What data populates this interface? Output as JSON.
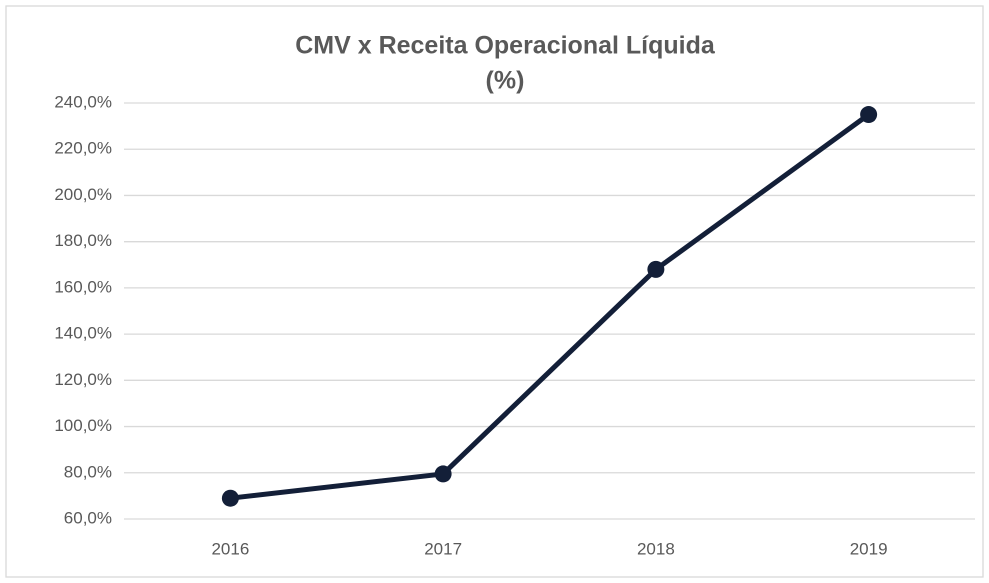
{
  "chart_data": {
    "type": "line",
    "title": "CMV x Receita Operacional  Líquida",
    "subtitle": "(%)",
    "categories": [
      "2016",
      "2017",
      "2018",
      "2019"
    ],
    "series": [
      {
        "name": "CMV x Receita Operacional Líquida",
        "color": "#131f38",
        "values": [
          69,
          79.5,
          168,
          235
        ]
      }
    ],
    "ylim": [
      60,
      240
    ],
    "yticks": [
      {
        "value": 60,
        "label": "60,0%"
      },
      {
        "value": 80,
        "label": "80,0%"
      },
      {
        "value": 100,
        "label": "100,0%"
      },
      {
        "value": 120,
        "label": "120,0%"
      },
      {
        "value": 140,
        "label": "140,0%"
      },
      {
        "value": 160,
        "label": "160,0%"
      },
      {
        "value": 180,
        "label": "180,0%"
      },
      {
        "value": 200,
        "label": "200,0%"
      },
      {
        "value": 220,
        "label": "220,0%"
      },
      {
        "value": 240,
        "label": "240,0%"
      }
    ],
    "grid": true
  }
}
